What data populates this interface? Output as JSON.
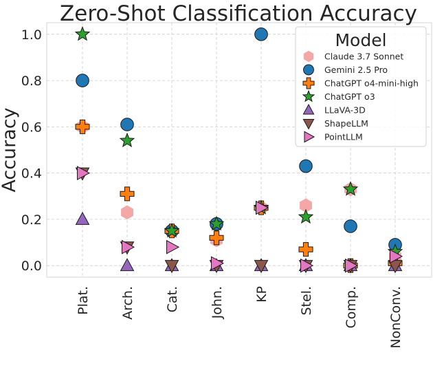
{
  "chart_data": {
    "type": "scatter",
    "title": "Zero-Shot Classification Accuracy",
    "xlabel": "",
    "ylabel": "Accuracy",
    "ylim": [
      -0.05,
      1.05
    ],
    "yticks": [
      0.0,
      0.2,
      0.4,
      0.6,
      0.8,
      1.0
    ],
    "ytick_labels": [
      "0.0",
      "0.2",
      "0.4",
      "0.6",
      "0.8",
      "1.0"
    ],
    "categories": [
      "Plat.",
      "Arch.",
      "Cat.",
      "John.",
      "KP",
      "Stel.",
      "Comp.",
      "NonConv."
    ],
    "grid": true,
    "legend_title": "Model",
    "legend_position": "top-right",
    "series": [
      {
        "name": "Claude 3.7 Sonnet",
        "marker": "hexagon",
        "color": "#f4a7a7",
        "values": [
          0.6,
          0.23,
          0.15,
          0.11,
          0.25,
          0.26,
          0.33,
          0.04
        ]
      },
      {
        "name": "Gemini 2.5 Pro",
        "marker": "circle",
        "color": "#1f77b4",
        "values": [
          0.8,
          0.61,
          0.15,
          0.18,
          1.0,
          0.43,
          0.17,
          0.09
        ]
      },
      {
        "name": "ChatGPT o4-mini-high",
        "marker": "plus",
        "color": "#ff7f0e",
        "values": [
          0.6,
          0.31,
          0.15,
          0.12,
          0.25,
          0.07,
          0.0,
          0.01
        ]
      },
      {
        "name": "ChatGPT o3",
        "marker": "star",
        "color": "#2ca02c",
        "values": [
          1.0,
          0.54,
          0.15,
          0.18,
          0.25,
          0.21,
          0.33,
          0.06
        ]
      },
      {
        "name": "LLaVA-3D",
        "marker": "triangle-up",
        "color": "#9467bd",
        "values": [
          0.2,
          0.0,
          0.0,
          0.0,
          0.0,
          0.0,
          0.0,
          0.0
        ]
      },
      {
        "name": "ShapeLLM",
        "marker": "triangle-down",
        "color": "#8c564b",
        "values": [
          0.4,
          0.08,
          0.0,
          0.0,
          0.0,
          0.0,
          0.0,
          0.0
        ]
      },
      {
        "name": "PointLLM",
        "marker": "triangle-right",
        "color": "#e377c2",
        "values": [
          0.4,
          0.08,
          0.08,
          0.01,
          0.25,
          0.0,
          0.0,
          0.04
        ]
      }
    ]
  }
}
